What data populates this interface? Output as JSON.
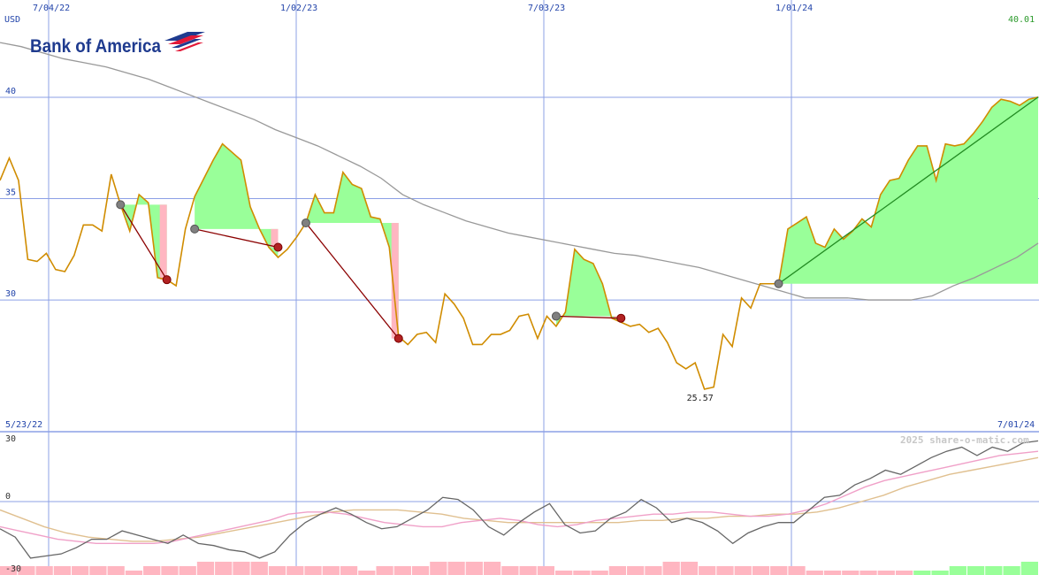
{
  "chart_data": [
    {
      "type": "line",
      "title": "Bank of America",
      "ylabel": "USD",
      "ylim": [
        23.5,
        44.8
      ],
      "x_tick_labels": [
        "7/04/22",
        "1/02/23",
        "7/03/23",
        "1/01/24"
      ],
      "y_tick_labels": [
        "40",
        "35",
        "30"
      ],
      "last_value_label": "40.01",
      "min_value_label": "25.57",
      "start_date_label": "5/23/22",
      "end_date_label": "7/01/24",
      "grid": true,
      "colors": {
        "price": "#d08c00",
        "moving_average": "#999999",
        "gain_fill": "#99ff99",
        "loss_fill": "#ffb6c1",
        "grid": "#8ca0e6",
        "axis_text": "#2244aa",
        "last_value_text": "#2a9a2a",
        "loss_trade_line": "#8b0000",
        "gain_trade_line": "#228b22"
      },
      "series": [
        {
          "role": "price",
          "values": [
            35.9,
            37,
            35.9,
            32.0,
            31.9,
            32.3,
            31.5,
            31.4,
            32.2,
            33.7,
            33.7,
            33.4,
            36.2,
            34.7,
            33.4,
            35.2,
            34.8,
            31.1,
            31.0,
            30.7,
            33.5,
            35.1,
            36.0,
            36.9,
            37.7,
            37.3,
            36.9,
            34.6,
            33.5,
            32.6,
            32.1,
            32.5,
            33.1,
            33.8,
            35.2,
            34.3,
            34.3,
            36.3,
            35.7,
            35.5,
            34.1,
            34.0,
            32.6,
            28.2,
            27.8,
            28.3,
            28.4,
            27.9,
            30.3,
            29.8,
            29.1,
            27.8,
            27.8,
            28.3,
            28.3,
            28.5,
            29.2,
            29.3,
            28.1,
            29.2,
            28.7,
            29.4,
            32.5,
            32.0,
            31.8,
            30.8,
            29.1,
            28.9,
            28.7,
            28.8,
            28.4,
            28.6,
            27.9,
            26.9,
            26.6,
            26.9,
            25.6,
            25.7,
            28.3,
            27.7,
            30.1,
            29.6,
            30.8,
            30.8,
            30.8,
            33.5,
            33.8,
            34.1,
            32.8,
            32.6,
            33.5,
            33.0,
            33.4,
            34.0,
            33.6,
            35.2,
            35.9,
            36.0,
            36.9,
            37.6,
            37.6,
            35.9,
            37.7,
            37.6,
            37.7,
            38.2,
            38.8,
            39.5,
            39.9,
            39.8,
            39.6,
            39.9,
            40.01
          ]
        },
        {
          "role": "moving_average",
          "values": [
            42.7,
            42.5,
            42.2,
            41.9,
            41.7,
            41.5,
            41.2,
            40.9,
            40.5,
            40.1,
            39.7,
            39.3,
            38.9,
            38.4,
            38.0,
            37.6,
            37.1,
            36.6,
            36.0,
            35.2,
            34.7,
            34.3,
            33.9,
            33.6,
            33.3,
            33.1,
            32.9,
            32.7,
            32.5,
            32.3,
            32.2,
            32.0,
            31.8,
            31.6,
            31.3,
            31.0,
            30.7,
            30.4,
            30.1,
            30.1,
            30.1,
            30.0,
            30.0,
            30.0,
            30.2,
            30.7,
            31.1,
            31.6,
            32.1,
            32.8
          ]
        }
      ],
      "trades": [
        {
          "entry_value": 34.7,
          "exit_value": 31.0
        },
        {
          "entry_value": 33.5,
          "exit_value": 32.6
        },
        {
          "entry_value": 33.8,
          "exit_value": 28.1
        },
        {
          "entry_value": 29.2,
          "exit_value": 29.1
        },
        {
          "entry_value": 30.8,
          "exit_value": 40.01
        }
      ]
    },
    {
      "type": "line",
      "ylim": [
        -30,
        30
      ],
      "y_tick_labels": [
        "30",
        "0",
        "-30"
      ],
      "watermark": "2025 share-o-matic.com",
      "colors": {
        "oscillator": "#666666",
        "pink_average": "#f0a0c8",
        "tan_average": "#e0c090",
        "negative_bars": "#ffb6c1",
        "positive_bars": "#99ff99"
      },
      "series": [
        {
          "role": "oscillator",
          "values": [
            -13,
            -17,
            -27,
            -26,
            -25,
            -22,
            -18,
            -18,
            -14,
            -16,
            -18,
            -20,
            -16,
            -20,
            -21,
            -23,
            -24,
            -27,
            -24,
            -16,
            -10,
            -6,
            -3,
            -6,
            -10,
            -13,
            -12,
            -8,
            -4,
            2,
            1,
            -4,
            -12,
            -16,
            -10,
            -5,
            -1,
            -11,
            -15,
            -14,
            -8,
            -5,
            1,
            -3,
            -10,
            -8,
            -10,
            -14,
            -20,
            -15,
            -12,
            -10,
            -10,
            -4,
            2,
            3,
            8,
            11,
            15,
            13,
            17,
            21,
            24,
            26,
            22,
            26,
            24,
            28,
            29
          ]
        },
        {
          "role": "pink_average",
          "values": [
            -12,
            -14,
            -16,
            -18,
            -19,
            -20,
            -20,
            -20,
            -20,
            -19,
            -17,
            -15,
            -13,
            -11,
            -9,
            -6,
            -5,
            -5,
            -6,
            -8,
            -10,
            -11,
            -12,
            -12,
            -10,
            -9,
            -8,
            -9,
            -11,
            -12,
            -11,
            -9,
            -8,
            -7,
            -6,
            -6,
            -5,
            -5,
            -6,
            -7,
            -7,
            -6,
            -4,
            -1,
            3,
            7,
            10,
            12,
            14,
            16,
            18,
            20,
            22,
            23,
            24
          ]
        },
        {
          "role": "tan_average",
          "values": [
            -4,
            -8,
            -12,
            -15,
            -17,
            -18,
            -19,
            -19,
            -18,
            -17,
            -15,
            -13,
            -11,
            -9,
            -7,
            -5,
            -4,
            -4,
            -4,
            -5,
            -6,
            -8,
            -9,
            -10,
            -10,
            -10,
            -10,
            -10,
            -10,
            -9,
            -9,
            -8,
            -8,
            -7,
            -7,
            -6,
            -6,
            -5,
            -3,
            0,
            3,
            7,
            10,
            13,
            15,
            17,
            19,
            21
          ]
        },
        {
          "role": "volume_bars",
          "values": [
            -2,
            -2,
            -2,
            -2,
            -2,
            -2,
            -2,
            -1,
            -2,
            -2,
            -2,
            -3,
            -3,
            -3,
            -3,
            -2,
            -2,
            -2,
            -2,
            -2,
            -1,
            -2,
            -2,
            -2,
            -3,
            -3,
            -3,
            -3,
            -2,
            -2,
            -2,
            -1,
            -1,
            -1,
            -2,
            -2,
            -2,
            -3,
            -3,
            -2,
            -2,
            -2,
            -2,
            -2,
            -2,
            -1,
            -1,
            -1,
            -1,
            -1,
            -1,
            1,
            1,
            2,
            2,
            2,
            2,
            3
          ]
        }
      ]
    }
  ]
}
